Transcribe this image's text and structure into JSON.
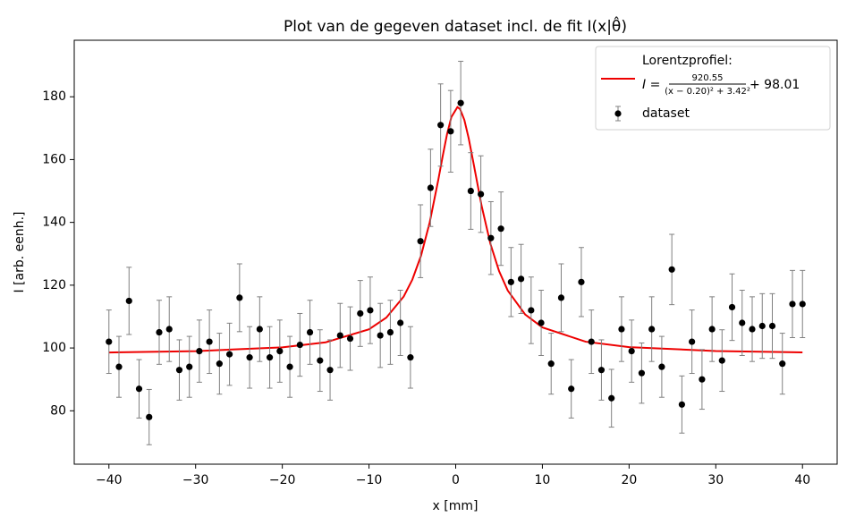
{
  "chart_data": {
    "type": "scatter",
    "title": "Plot van de gegeven dataset incl. de fit I(x|θ̂)",
    "xlabel": "x [mm]",
    "ylabel": "I [arb. eenh.]",
    "xlim": [
      -44,
      44
    ],
    "ylim": [
      63,
      198
    ],
    "xticks": [
      {
        "value": -40,
        "label": "−40"
      },
      {
        "value": -30,
        "label": "−30"
      },
      {
        "value": -20,
        "label": "−20"
      },
      {
        "value": -10,
        "label": "−10"
      },
      0,
      10,
      20,
      30,
      40
    ],
    "yticks": [
      80,
      100,
      120,
      140,
      160,
      180
    ],
    "legend": "upper right",
    "series": [
      {
        "name": "Lorentzprofiel:",
        "type": "line",
        "color": "#ee0000",
        "formula": {
          "lhs": "I =",
          "numerator": "920.55",
          "denominator": "(x − 0.20)² + 3.42²",
          "rest": "+ 98.01"
        },
        "x": [
          -40,
          -30,
          -20,
          -15,
          -10,
          -8,
          -6,
          -5,
          -4,
          -3,
          -2,
          -1.5,
          -1,
          -0.5,
          0.2,
          0.5,
          1,
          1.5,
          2,
          3,
          4,
          5,
          6,
          8,
          10,
          15,
          20,
          30,
          40
        ],
        "values": [
          98.58,
          99.01,
          100.2,
          101.8,
          105.96,
          109.67,
          116.37,
          121.77,
          129.39,
          139.97,
          153.67,
          161.11,
          168.07,
          173.53,
          176.72,
          176.1,
          172.61,
          166.77,
          159.63,
          145.13,
          133.23,
          124.51,
          118.31,
          110.7,
          106.55,
          102.0,
          100.29,
          99.03,
          98.59
        ]
      },
      {
        "name": "dataset",
        "type": "errorbar",
        "color": "#000000",
        "errcolor": "#808080",
        "x": [
          -40,
          -38.84,
          -37.68,
          -36.52,
          -35.36,
          -34.2,
          -33.04,
          -31.88,
          -30.72,
          -29.57,
          -28.41,
          -27.25,
          -26.09,
          -24.93,
          -23.77,
          -22.61,
          -21.45,
          -20.29,
          -19.13,
          -17.97,
          -16.81,
          -15.65,
          -14.49,
          -13.33,
          -12.17,
          -11.01,
          -9.86,
          -8.7,
          -7.54,
          -6.38,
          -5.22,
          -4.06,
          -2.9,
          -1.74,
          -0.58,
          0.58,
          1.74,
          2.9,
          4.06,
          5.22,
          6.38,
          7.54,
          8.7,
          9.86,
          11.01,
          12.17,
          13.33,
          14.49,
          15.65,
          16.81,
          17.97,
          19.13,
          20.29,
          21.45,
          22.61,
          23.77,
          24.93,
          26.09,
          27.25,
          28.41,
          29.57,
          30.72,
          31.88,
          33.04,
          34.2,
          35.36,
          36.52,
          37.68,
          38.84,
          40
        ],
        "values": [
          102,
          94,
          115,
          87,
          78,
          105,
          106,
          93,
          94,
          99,
          102,
          95,
          98,
          116,
          97,
          106,
          97,
          99,
          94,
          101,
          105,
          96,
          93,
          104,
          103,
          111,
          112,
          104,
          105,
          108,
          97,
          134,
          151,
          171,
          169,
          178,
          150,
          149,
          135,
          138,
          121,
          122,
          112,
          108,
          95,
          116,
          87,
          121,
          102,
          93,
          84,
          106,
          99,
          92,
          106,
          94,
          125,
          82,
          102,
          90,
          106,
          96,
          113,
          108,
          106,
          107,
          107,
          95,
          114,
          114
        ],
        "errors": [
          10.1,
          9.7,
          10.7,
          9.3,
          8.8,
          10.2,
          10.3,
          9.6,
          9.7,
          9.9,
          10.1,
          9.7,
          9.9,
          10.8,
          9.8,
          10.3,
          9.8,
          9.9,
          9.7,
          10.0,
          10.2,
          9.8,
          9.6,
          10.2,
          10.1,
          10.5,
          10.6,
          10.2,
          10.2,
          10.4,
          9.8,
          11.6,
          12.3,
          13.1,
          13.0,
          13.3,
          12.2,
          12.2,
          11.6,
          11.7,
          11.0,
          11.0,
          10.6,
          10.4,
          9.7,
          10.8,
          9.3,
          11.0,
          10.1,
          9.6,
          9.2,
          10.3,
          9.9,
          9.6,
          10.3,
          9.7,
          11.2,
          9.1,
          10.1,
          9.5,
          10.3,
          9.8,
          10.6,
          10.4,
          10.3,
          10.3,
          10.3,
          9.7,
          10.7,
          10.7
        ]
      }
    ]
  }
}
